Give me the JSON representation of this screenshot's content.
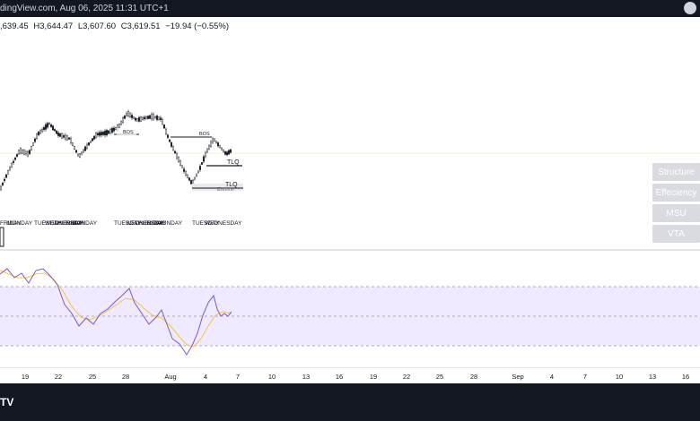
{
  "header": {
    "title": "dingView.com, Aug 06, 2025 11:31 UTC+1"
  },
  "ohlc": {
    "open": ",639.45",
    "high": "H3,644.47",
    "low": "L3,607.60",
    "close": "C3,619.51",
    "change": "−19.94 (−0.55%)"
  },
  "annotations": {
    "bos1": "BOS",
    "bos2": "BOS",
    "tlq1": "TLQ",
    "tlq2": "TLQ",
    "extreme": "Extreme",
    "day_labels": [
      "FRIDAY",
      "MONDAY",
      "TUESDAY",
      "WEDNESDAY",
      "THURSDAY",
      "FRIDAY",
      "MONDAY",
      "TUESDAY",
      "WEDNESDAY",
      "THURSDAY",
      "FRIDAY",
      "MONDAY",
      "TUESDAY",
      "WEDNESDAY"
    ]
  },
  "indicator_buttons": [
    "Structure",
    "Effeciency",
    "MSU",
    "VTA"
  ],
  "x_axis": {
    "labels": [
      "19",
      "22",
      "25",
      "28",
      "Aug",
      "4",
      "7",
      "10",
      "13",
      "16",
      "19",
      "22",
      "25",
      "28",
      "Sep",
      "4",
      "7",
      "10",
      "13",
      "16"
    ]
  },
  "colors": {
    "background": "#ffffff",
    "bars": "#131722",
    "rsi_line": "#7e57c2",
    "rsi_ma": "#f5c542",
    "rsi_band": "#efeaff",
    "toolbar": "#131722",
    "button_bg": "#d9dbe0"
  },
  "footer": {
    "logo": "TV"
  }
}
